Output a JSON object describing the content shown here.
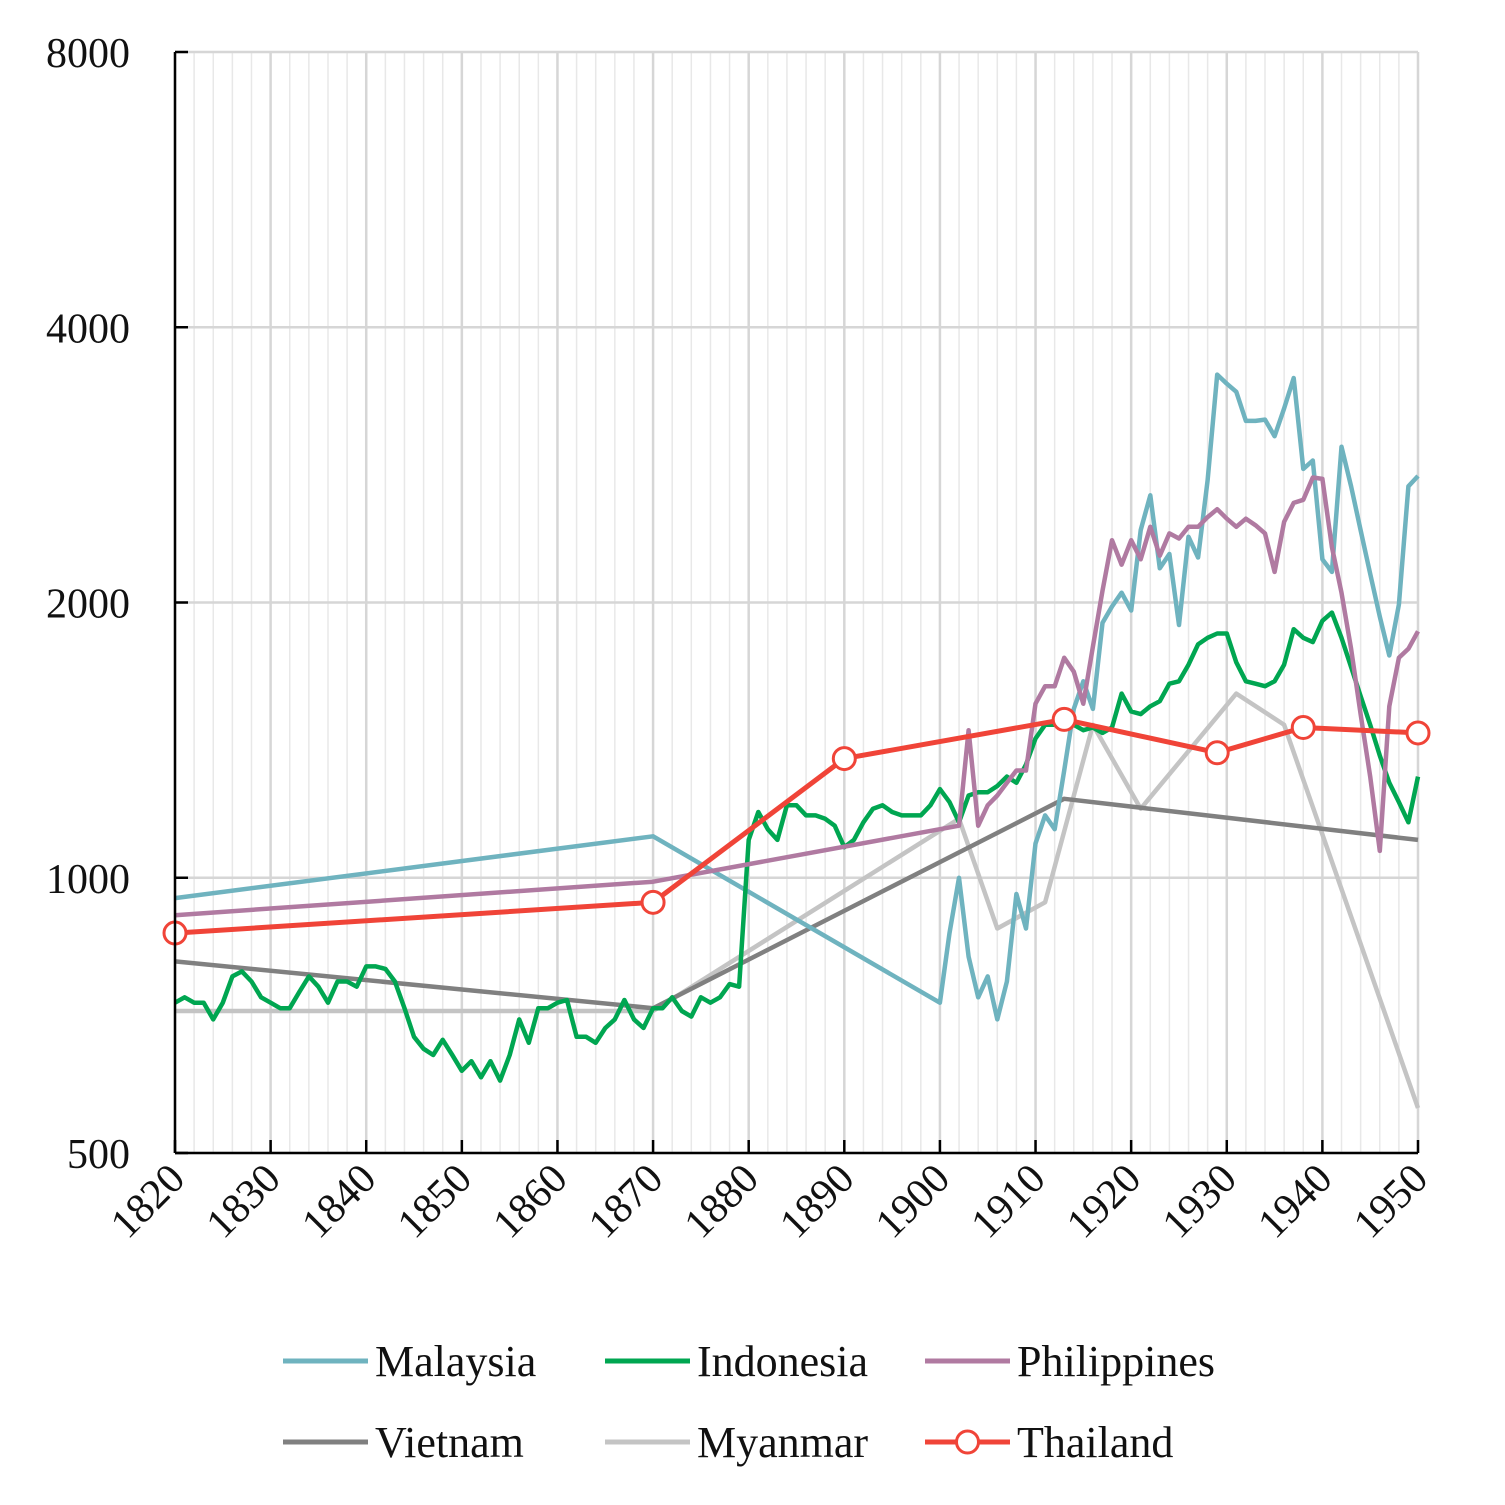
{
  "chart_data": {
    "type": "line",
    "title": "",
    "xlabel": "",
    "ylabel": "",
    "xlim": [
      1820,
      1950
    ],
    "ylim": [
      500,
      8000
    ],
    "yscale": "log2",
    "grid": true,
    "legend_position": "bottom",
    "x_ticks": [
      "1820",
      "1830",
      "1840",
      "1850",
      "1860",
      "1870",
      "1880",
      "1890",
      "1900",
      "1910",
      "1920",
      "1930",
      "1940",
      "1950"
    ],
    "y_ticks": [
      "500",
      "1000",
      "2000",
      "4000",
      "8000"
    ],
    "colors": {
      "Malaysia": "#6fb3bf",
      "Indonesia": "#00a651",
      "Philippines": "#b07aa1",
      "Vietnam": "#808080",
      "Myanmar": "#c4c4c4",
      "Thailand": "#f04438"
    },
    "series": [
      {
        "name": "Malaysia",
        "color": "#6fb3bf",
        "marker": "none",
        "points": [
          [
            1820,
            950
          ],
          [
            1870,
            1110
          ],
          [
            1900,
            730
          ],
          [
            1901,
            870
          ],
          [
            1902,
            1000
          ],
          [
            1903,
            820
          ],
          [
            1904,
            740
          ],
          [
            1905,
            780
          ],
          [
            1906,
            700
          ],
          [
            1907,
            770
          ],
          [
            1908,
            960
          ],
          [
            1909,
            880
          ],
          [
            1910,
            1090
          ],
          [
            1911,
            1170
          ],
          [
            1912,
            1130
          ],
          [
            1913,
            1310
          ],
          [
            1914,
            1530
          ],
          [
            1915,
            1640
          ],
          [
            1916,
            1530
          ],
          [
            1917,
            1900
          ],
          [
            1918,
            1980
          ],
          [
            1919,
            2050
          ],
          [
            1920,
            1960
          ],
          [
            1921,
            2400
          ],
          [
            1922,
            2620
          ],
          [
            1923,
            2180
          ],
          [
            1924,
            2260
          ],
          [
            1925,
            1890
          ],
          [
            1926,
            2360
          ],
          [
            1927,
            2240
          ],
          [
            1928,
            2720
          ],
          [
            1929,
            3550
          ],
          [
            1930,
            3470
          ],
          [
            1931,
            3400
          ],
          [
            1932,
            3160
          ],
          [
            1933,
            3160
          ],
          [
            1934,
            3170
          ],
          [
            1935,
            3040
          ],
          [
            1936,
            3260
          ],
          [
            1937,
            3520
          ],
          [
            1938,
            2800
          ],
          [
            1939,
            2860
          ],
          [
            1940,
            2230
          ],
          [
            1941,
            2160
          ],
          [
            1942,
            2960
          ],
          [
            1943,
            2680
          ],
          [
            1944,
            2400
          ],
          [
            1945,
            2150
          ],
          [
            1946,
            1930
          ],
          [
            1947,
            1750
          ],
          [
            1948,
            1990
          ],
          [
            1949,
            2680
          ],
          [
            1950,
            2750
          ]
        ]
      },
      {
        "name": "Indonesia",
        "color": "#00a651",
        "marker": "none",
        "points": [
          [
            1820,
            730
          ],
          [
            1821,
            740
          ],
          [
            1822,
            730
          ],
          [
            1823,
            730
          ],
          [
            1824,
            700
          ],
          [
            1825,
            730
          ],
          [
            1826,
            780
          ],
          [
            1827,
            790
          ],
          [
            1828,
            770
          ],
          [
            1829,
            740
          ],
          [
            1830,
            730
          ],
          [
            1831,
            720
          ],
          [
            1832,
            720
          ],
          [
            1833,
            750
          ],
          [
            1834,
            780
          ],
          [
            1835,
            760
          ],
          [
            1836,
            730
          ],
          [
            1837,
            770
          ],
          [
            1838,
            770
          ],
          [
            1839,
            760
          ],
          [
            1840,
            800
          ],
          [
            1841,
            800
          ],
          [
            1842,
            795
          ],
          [
            1843,
            770
          ],
          [
            1844,
            720
          ],
          [
            1845,
            670
          ],
          [
            1846,
            650
          ],
          [
            1847,
            640
          ],
          [
            1848,
            665
          ],
          [
            1849,
            640
          ],
          [
            1850,
            615
          ],
          [
            1851,
            630
          ],
          [
            1852,
            605
          ],
          [
            1853,
            630
          ],
          [
            1854,
            600
          ],
          [
            1855,
            640
          ],
          [
            1856,
            700
          ],
          [
            1857,
            660
          ],
          [
            1858,
            720
          ],
          [
            1859,
            720
          ],
          [
            1860,
            730
          ],
          [
            1861,
            735
          ],
          [
            1862,
            670
          ],
          [
            1863,
            670
          ],
          [
            1864,
            660
          ],
          [
            1865,
            685
          ],
          [
            1866,
            700
          ],
          [
            1867,
            735
          ],
          [
            1868,
            700
          ],
          [
            1869,
            685
          ],
          [
            1870,
            720
          ],
          [
            1871,
            720
          ],
          [
            1872,
            740
          ],
          [
            1873,
            715
          ],
          [
            1874,
            705
          ],
          [
            1875,
            740
          ],
          [
            1876,
            730
          ],
          [
            1877,
            740
          ],
          [
            1878,
            765
          ],
          [
            1879,
            760
          ],
          [
            1880,
            1100
          ],
          [
            1881,
            1180
          ],
          [
            1882,
            1130
          ],
          [
            1883,
            1100
          ],
          [
            1884,
            1200
          ],
          [
            1885,
            1200
          ],
          [
            1886,
            1170
          ],
          [
            1887,
            1170
          ],
          [
            1888,
            1160
          ],
          [
            1889,
            1140
          ],
          [
            1890,
            1080
          ],
          [
            1891,
            1100
          ],
          [
            1892,
            1150
          ],
          [
            1893,
            1190
          ],
          [
            1894,
            1200
          ],
          [
            1895,
            1180
          ],
          [
            1896,
            1170
          ],
          [
            1897,
            1170
          ],
          [
            1898,
            1170
          ],
          [
            1899,
            1200
          ],
          [
            1900,
            1250
          ],
          [
            1901,
            1210
          ],
          [
            1902,
            1150
          ],
          [
            1903,
            1230
          ],
          [
            1904,
            1240
          ],
          [
            1905,
            1240
          ],
          [
            1906,
            1260
          ],
          [
            1907,
            1290
          ],
          [
            1908,
            1270
          ],
          [
            1909,
            1330
          ],
          [
            1910,
            1420
          ],
          [
            1911,
            1470
          ],
          [
            1912,
            1470
          ],
          [
            1913,
            1480
          ],
          [
            1914,
            1470
          ],
          [
            1915,
            1450
          ],
          [
            1916,
            1460
          ],
          [
            1917,
            1440
          ],
          [
            1918,
            1460
          ],
          [
            1919,
            1590
          ],
          [
            1920,
            1520
          ],
          [
            1921,
            1510
          ],
          [
            1922,
            1540
          ],
          [
            1923,
            1560
          ],
          [
            1924,
            1630
          ],
          [
            1925,
            1640
          ],
          [
            1926,
            1710
          ],
          [
            1927,
            1800
          ],
          [
            1928,
            1830
          ],
          [
            1929,
            1850
          ],
          [
            1930,
            1850
          ],
          [
            1931,
            1720
          ],
          [
            1932,
            1640
          ],
          [
            1933,
            1630
          ],
          [
            1934,
            1620
          ],
          [
            1935,
            1640
          ],
          [
            1936,
            1710
          ],
          [
            1937,
            1870
          ],
          [
            1938,
            1830
          ],
          [
            1939,
            1810
          ],
          [
            1940,
            1910
          ],
          [
            1941,
            1950
          ],
          [
            1942,
            1830
          ],
          [
            1943,
            1700
          ],
          [
            1944,
            1580
          ],
          [
            1945,
            1470
          ],
          [
            1946,
            1360
          ],
          [
            1947,
            1270
          ],
          [
            1948,
            1210
          ],
          [
            1949,
            1150
          ],
          [
            1950,
            1290
          ]
        ]
      },
      {
        "name": "Philippines",
        "color": "#b07aa1",
        "marker": "none",
        "points": [
          [
            1820,
            910
          ],
          [
            1870,
            990
          ],
          [
            1902,
            1140
          ],
          [
            1903,
            1450
          ],
          [
            1904,
            1140
          ],
          [
            1905,
            1200
          ],
          [
            1906,
            1230
          ],
          [
            1907,
            1270
          ],
          [
            1908,
            1310
          ],
          [
            1909,
            1310
          ],
          [
            1910,
            1550
          ],
          [
            1911,
            1620
          ],
          [
            1912,
            1620
          ],
          [
            1913,
            1740
          ],
          [
            1914,
            1680
          ],
          [
            1915,
            1550
          ],
          [
            1916,
            1790
          ],
          [
            1917,
            2060
          ],
          [
            1918,
            2340
          ],
          [
            1919,
            2200
          ],
          [
            1920,
            2340
          ],
          [
            1921,
            2230
          ],
          [
            1922,
            2420
          ],
          [
            1923,
            2250
          ],
          [
            1924,
            2380
          ],
          [
            1925,
            2350
          ],
          [
            1926,
            2420
          ],
          [
            1927,
            2420
          ],
          [
            1928,
            2480
          ],
          [
            1929,
            2530
          ],
          [
            1930,
            2470
          ],
          [
            1931,
            2420
          ],
          [
            1932,
            2470
          ],
          [
            1933,
            2430
          ],
          [
            1934,
            2380
          ],
          [
            1935,
            2160
          ],
          [
            1936,
            2450
          ],
          [
            1937,
            2570
          ],
          [
            1938,
            2590
          ],
          [
            1939,
            2740
          ],
          [
            1940,
            2730
          ],
          [
            1941,
            2300
          ],
          [
            1942,
            2050
          ],
          [
            1943,
            1780
          ],
          [
            1944,
            1510
          ],
          [
            1945,
            1290
          ],
          [
            1946,
            1070
          ],
          [
            1947,
            1540
          ],
          [
            1948,
            1740
          ],
          [
            1949,
            1780
          ],
          [
            1950,
            1860
          ]
        ]
      },
      {
        "name": "Vietnam",
        "color": "#808080",
        "marker": "none",
        "points": [
          [
            1820,
            810
          ],
          [
            1870,
            720
          ],
          [
            1913,
            1220
          ],
          [
            1950,
            1100
          ]
        ]
      },
      {
        "name": "Myanmar",
        "color": "#c4c4c4",
        "marker": "none",
        "points": [
          [
            1820,
            715
          ],
          [
            1870,
            715
          ],
          [
            1902,
            1160
          ],
          [
            1906,
            880
          ],
          [
            1911,
            940
          ],
          [
            1916,
            1470
          ],
          [
            1921,
            1190
          ],
          [
            1931,
            1590
          ],
          [
            1936,
            1470
          ],
          [
            1950,
            560
          ]
        ]
      },
      {
        "name": "Thailand",
        "color": "#f04438",
        "marker": "circle",
        "points": [
          [
            1820,
            870
          ],
          [
            1870,
            940
          ],
          [
            1890,
            1350
          ],
          [
            1913,
            1490
          ],
          [
            1929,
            1370
          ],
          [
            1938,
            1460
          ],
          [
            1950,
            1440
          ]
        ]
      }
    ]
  },
  "legend": {
    "items": [
      {
        "label": "Malaysia",
        "color": "#6fb3bf",
        "marker": "none"
      },
      {
        "label": "Indonesia",
        "color": "#00a651",
        "marker": "none"
      },
      {
        "label": "Philippines",
        "color": "#b07aa1",
        "marker": "none"
      },
      {
        "label": "Vietnam",
        "color": "#808080",
        "marker": "none"
      },
      {
        "label": "Myanmar",
        "color": "#c4c4c4",
        "marker": "none"
      },
      {
        "label": "Thailand",
        "color": "#f04438",
        "marker": "circle"
      }
    ]
  }
}
